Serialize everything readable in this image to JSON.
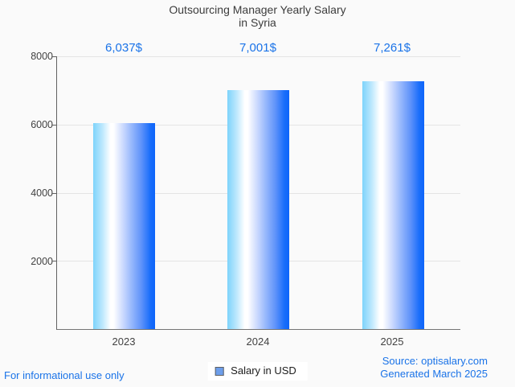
{
  "title": {
    "line1": "Outsourcing Manager Yearly Salary",
    "line2": "in Syria"
  },
  "chart_data": {
    "type": "bar",
    "title": "Outsourcing Manager Yearly Salary in Syria",
    "categories": [
      "2023",
      "2024",
      "2025"
    ],
    "values": [
      6037,
      7001,
      7261
    ],
    "value_labels": [
      "6,037$",
      "7,001$",
      "7,261$"
    ],
    "series": [
      {
        "name": "Salary in USD",
        "values": [
          6037,
          7001,
          7261
        ]
      }
    ],
    "xlabel": "",
    "ylabel": "",
    "ylim": [
      0,
      8000
    ],
    "yticks": [
      8000,
      6000,
      4000,
      2000
    ],
    "ytick_labels": [
      "8000",
      "6000",
      "4000",
      "2000"
    ],
    "grid": true,
    "legend_position": "bottom"
  },
  "legend": {
    "label": "Salary in USD",
    "marker_color": "#6d9eeb"
  },
  "footer": {
    "left": "For informational use only",
    "source": "Source: optisalary.com",
    "generated": "Generated March 2025"
  },
  "colors": {
    "background": "#fafafa",
    "accent_blue": "#1a73e8",
    "bar_gradient_left": "#7dd3fb",
    "bar_gradient_mid": "#ffffff",
    "bar_gradient_right": "#0d64fa",
    "gridline": "#e4e4e4",
    "axis": "#616161",
    "text_dark": "#3c3c3c"
  }
}
